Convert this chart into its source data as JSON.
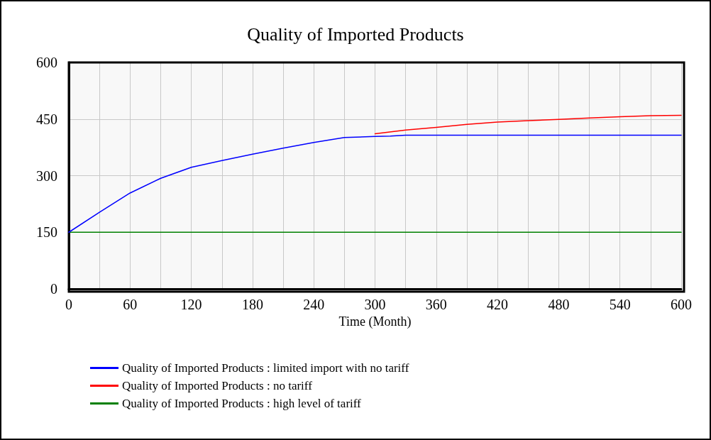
{
  "chart_data": {
    "type": "line",
    "title": "Quality of Imported Products",
    "xlabel": "Time (Month)",
    "xlim": [
      0,
      600
    ],
    "xticks": [
      0,
      {
        "value": 30,
        "label": null
      },
      60,
      {
        "value": 90,
        "label": null
      },
      120,
      {
        "value": 150,
        "label": null
      },
      180,
      {
        "value": 210,
        "label": null
      },
      240,
      {
        "value": 270,
        "label": null
      },
      300,
      {
        "value": 330,
        "label": null
      },
      360,
      {
        "value": 390,
        "label": null
      },
      420,
      {
        "value": 450,
        "label": null
      },
      480,
      {
        "value": 510,
        "label": null
      },
      540,
      {
        "value": 570,
        "label": null
      },
      600
    ],
    "ylim": [
      0,
      600
    ],
    "yticks": [
      0,
      150,
      300,
      450,
      600
    ],
    "grid": true,
    "legend": "bottom",
    "marker": "none",
    "line_style": "solid",
    "series": [
      {
        "name": "Quality of Imported Products : limited import with no tariff",
        "color": "#0000ff",
        "x": [
          0,
          30,
          60,
          90,
          120,
          150,
          180,
          210,
          240,
          270,
          300,
          315,
          330,
          600
        ],
        "values": [
          150,
          203,
          254,
          293,
          322,
          340,
          357,
          373,
          388,
          401,
          404,
          405,
          407,
          407
        ]
      },
      {
        "name": "Quality of Imported Products : no tariff",
        "color": "#ff0000",
        "x": [
          300,
          330,
          360,
          390,
          420,
          450,
          480,
          510,
          540,
          570,
          600
        ],
        "values": [
          411,
          421,
          428,
          436,
          442,
          446,
          449,
          453,
          456,
          459,
          460
        ]
      },
      {
        "name": "Quality of Imported Products : high level of tariff",
        "color": "#008000",
        "x": [
          0,
          600
        ],
        "values": [
          150,
          150
        ]
      }
    ]
  }
}
